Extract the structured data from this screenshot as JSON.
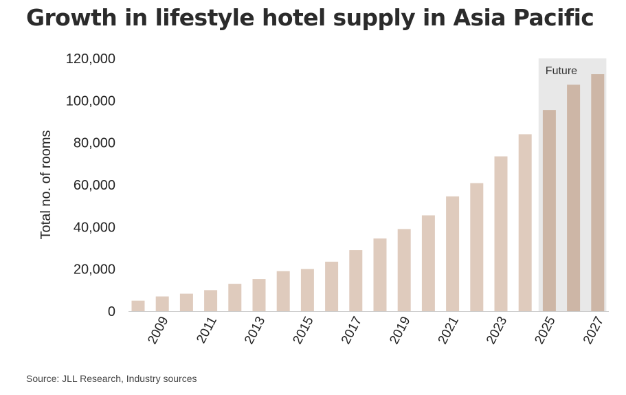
{
  "title": "Growth in lifestyle hotel supply in Asia Pacific",
  "source": "Source: JLL Research, Industry sources",
  "chart_data": {
    "type": "bar",
    "title": "Growth in lifestyle hotel supply in Asia Pacific",
    "xlabel": "",
    "ylabel": "Total no. of rooms",
    "ylim": [
      0,
      120000
    ],
    "yticks": [
      0,
      20000,
      40000,
      60000,
      80000,
      100000,
      120000
    ],
    "ytick_labels": [
      "0",
      "20,000",
      "40,000",
      "60,000",
      "80,000",
      "100,000",
      "120,000"
    ],
    "categories": [
      "2008",
      "2009",
      "2010",
      "2011",
      "2012",
      "2013",
      "2014",
      "2015",
      "2016",
      "2017",
      "2018",
      "2019",
      "2020",
      "2021",
      "2022",
      "2023",
      "2024",
      "2025",
      "2026",
      "2027"
    ],
    "xtick_labels": [
      "2009",
      "2011",
      "2013",
      "2015",
      "2017",
      "2019",
      "2021",
      "2023",
      "2025",
      "2027"
    ],
    "values": [
      5000,
      7000,
      8300,
      10000,
      13000,
      15300,
      19000,
      20000,
      23500,
      29000,
      34500,
      39000,
      45500,
      54500,
      60800,
      73500,
      84000,
      95500,
      107500,
      112500
    ],
    "future_label": "Future",
    "future_categories": [
      "2025",
      "2026",
      "2027"
    ],
    "grid": false,
    "legend": "none",
    "colors": {
      "bar": "#dfcbbd",
      "future_bar": "#cdb6a6",
      "future_band": "#e8e8e8",
      "axis": "#cccccc"
    }
  }
}
